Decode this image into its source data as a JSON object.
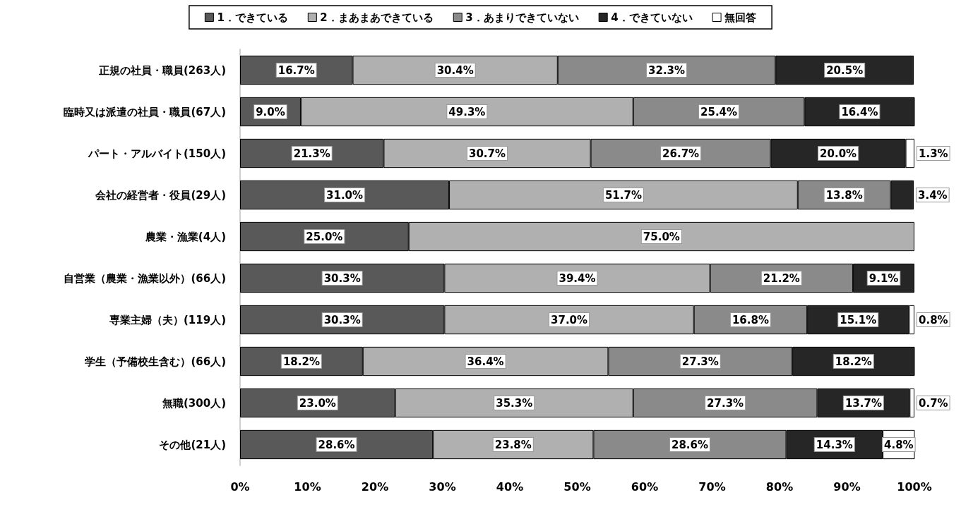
{
  "chart_data": {
    "type": "bar",
    "orientation": "horizontal",
    "stacked": true,
    "legend": "top",
    "grid": false,
    "categories": [
      "正規の社員・職員(263人)",
      "臨時又は派遣の社員・職員(67人)",
      "パート・アルバイト(150人)",
      "会社の経営者・役員(29人)",
      "農業・漁業(4人)",
      "自営業（農業・漁業以外）(66人)",
      "専業主婦（夫）(119人)",
      "学生（予備校生含む）(66人)",
      "無職(300人)",
      "その他(21人)"
    ],
    "xlim": [
      0,
      100
    ],
    "xticks": [
      {
        "value": 0,
        "label": "0%"
      },
      {
        "value": 10,
        "label": "10%"
      },
      {
        "value": 20,
        "label": "20%"
      },
      {
        "value": 30,
        "label": "30%"
      },
      {
        "value": 40,
        "label": "40%"
      },
      {
        "value": 50,
        "label": "50%"
      },
      {
        "value": 60,
        "label": "60%"
      },
      {
        "value": 70,
        "label": "70%"
      },
      {
        "value": 80,
        "label": "80%"
      },
      {
        "value": 90,
        "label": "90%"
      },
      {
        "value": 100,
        "label": "100%"
      }
    ],
    "series": [
      {
        "name": "1．できている",
        "color": "#595959",
        "values": [
          16.7,
          9.0,
          21.3,
          31.0,
          25.0,
          30.3,
          30.3,
          18.2,
          23.0,
          28.6
        ],
        "value_labels": [
          "16.7%",
          "9.0%",
          "21.3%",
          "31.0%",
          "25.0%",
          "30.3%",
          "30.3%",
          "18.2%",
          "23.0%",
          "28.6%"
        ]
      },
      {
        "name": "2．まあまあできている",
        "color": "#b0b0b0",
        "values": [
          30.4,
          49.3,
          30.7,
          51.7,
          75.0,
          39.4,
          37.0,
          36.4,
          35.3,
          23.8
        ],
        "value_labels": [
          "30.4%",
          "49.3%",
          "30.7%",
          "51.7%",
          "75.0%",
          "39.4%",
          "37.0%",
          "36.4%",
          "35.3%",
          "23.8%"
        ]
      },
      {
        "name": "3．あまりできていない",
        "color": "#8a8a8a",
        "values": [
          32.3,
          25.4,
          26.7,
          13.8,
          null,
          21.2,
          16.8,
          27.3,
          27.3,
          28.6
        ],
        "value_labels": [
          "32.3%",
          "25.4%",
          "26.7%",
          "13.8%",
          null,
          "21.2%",
          "16.8%",
          "27.3%",
          "27.3%",
          "28.6%"
        ]
      },
      {
        "name": "4．できていない",
        "color": "#262626",
        "values": [
          20.5,
          16.4,
          20.0,
          3.4,
          null,
          9.1,
          15.1,
          18.2,
          13.7,
          14.3
        ],
        "value_labels": [
          "20.5%",
          "16.4%",
          "20.0%",
          "3.4%",
          null,
          "9.1%",
          "15.1%",
          "18.2%",
          "13.7%",
          "14.3%"
        ]
      },
      {
        "name": "無回答",
        "color": "#ffffff",
        "values": [
          null,
          null,
          1.3,
          null,
          null,
          null,
          0.8,
          null,
          0.7,
          4.8
        ],
        "value_labels": [
          null,
          null,
          "1.3%",
          null,
          null,
          null,
          "0.8%",
          null,
          "0.7%",
          "4.8%"
        ]
      }
    ]
  }
}
